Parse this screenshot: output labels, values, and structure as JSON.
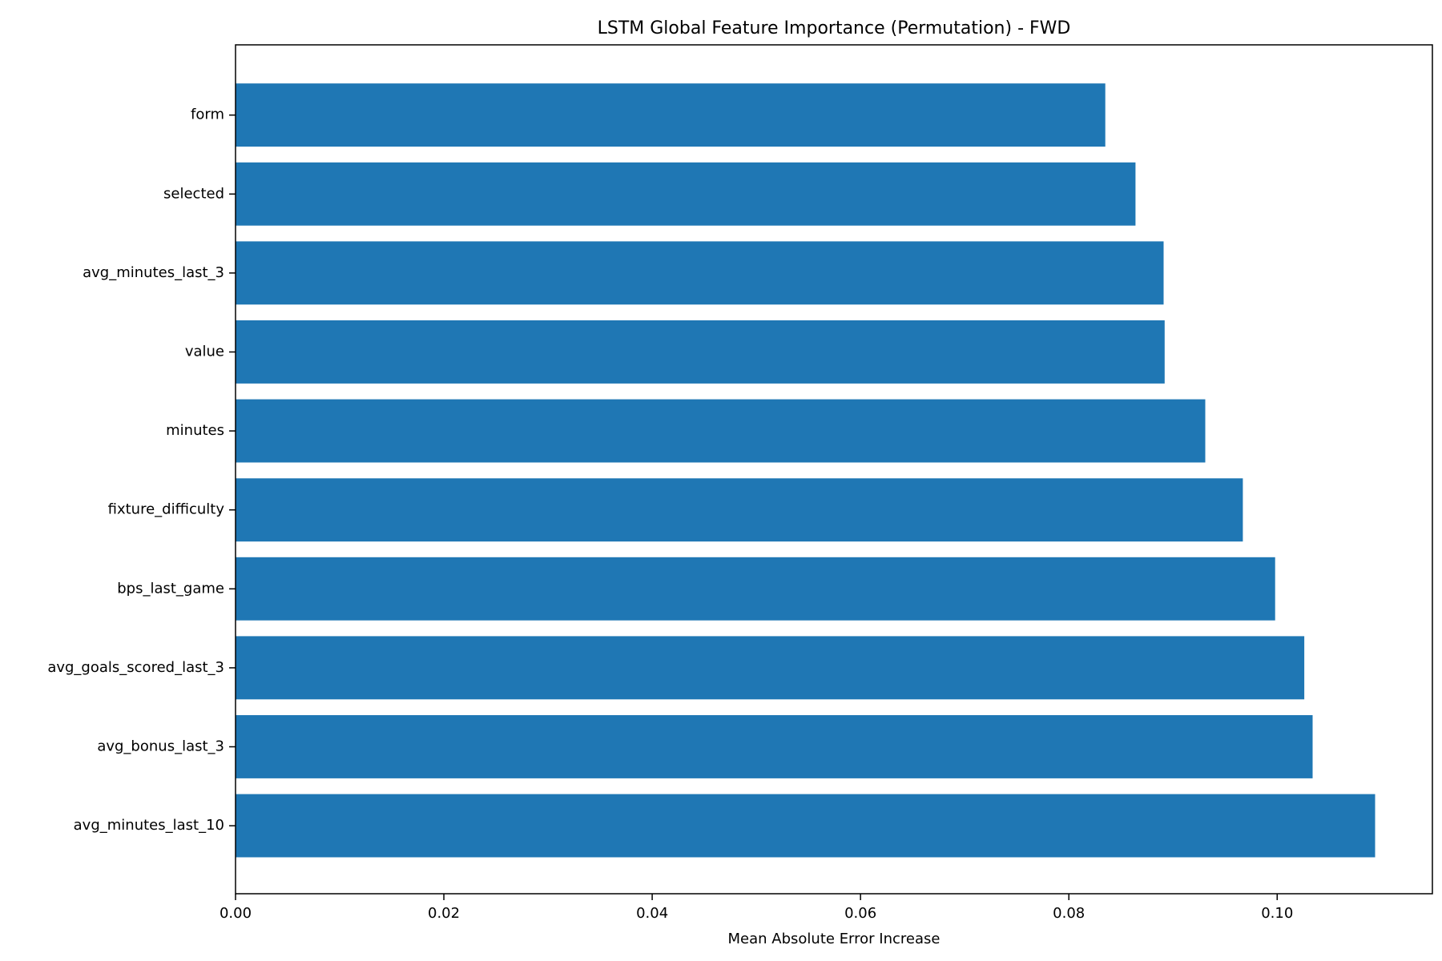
{
  "chart_data": {
    "type": "bar",
    "orientation": "horizontal",
    "title": "LSTM Global Feature Importance (Permutation) - FWD",
    "xlabel": "Mean Absolute Error Increase",
    "ylabel": "",
    "categories": [
      "form",
      "selected",
      "avg_minutes_last_3",
      "value",
      "minutes",
      "fixture_difficulty",
      "bps_last_game",
      "avg_goals_scored_last_3",
      "avg_bonus_last_3",
      "avg_minutes_last_10"
    ],
    "values": [
      0.0835,
      0.0864,
      0.0891,
      0.0892,
      0.0931,
      0.0967,
      0.0998,
      0.1026,
      0.1034,
      0.1094
    ],
    "xlim": [
      0.0,
      0.1149
    ],
    "xticks": [
      "0.00",
      "0.02",
      "0.04",
      "0.06",
      "0.08",
      "0.10"
    ],
    "xtick_values": [
      0.0,
      0.02,
      0.04,
      0.06,
      0.08,
      0.1
    ],
    "bar_color": "#1f77b4",
    "grid": false,
    "legend": "none"
  }
}
